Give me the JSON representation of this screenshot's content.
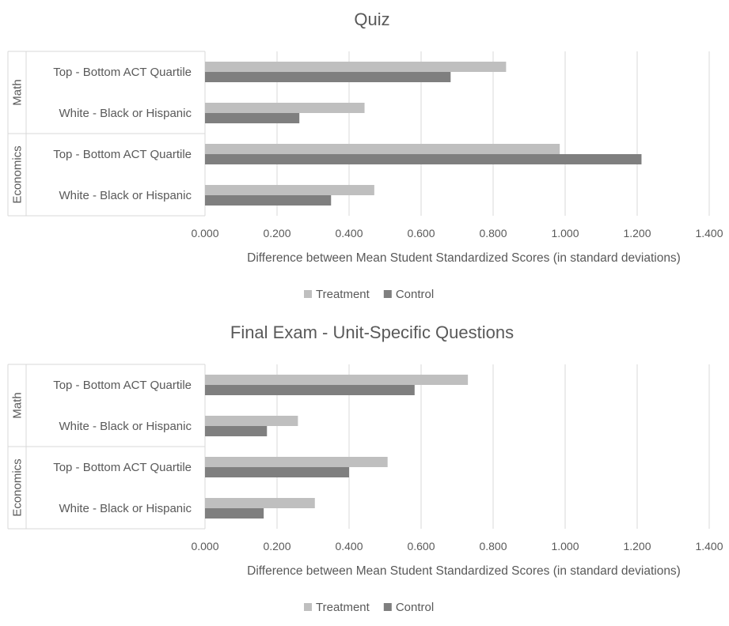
{
  "chart_data": [
    {
      "type": "bar",
      "orientation": "horizontal",
      "title": "Quiz",
      "xlabel": "Difference between Mean Student Standardized Scores (in standard deviations)",
      "xlim": [
        0,
        1.4
      ],
      "xticks": [
        "0.000",
        "0.200",
        "0.400",
        "0.600",
        "0.800",
        "1.000",
        "1.200",
        "1.400"
      ],
      "groups": [
        {
          "name": "Math",
          "categories": [
            "Top - Bottom ACT Quartile",
            "White - Black or Hispanic"
          ]
        },
        {
          "name": "Economics",
          "categories": [
            "Top - Bottom ACT Quartile",
            "White - Black or Hispanic"
          ]
        }
      ],
      "series": [
        {
          "name": "Treatment",
          "color": "#bfbfbf",
          "values": [
            0.836,
            0.443,
            0.985,
            0.47
          ]
        },
        {
          "name": "Control",
          "color": "#7f7f7f",
          "values": [
            0.682,
            0.262,
            1.212,
            0.35
          ]
        }
      ],
      "grid": true,
      "legend": "bottom"
    },
    {
      "type": "bar",
      "orientation": "horizontal",
      "title": "Final Exam - Unit-Specific Questions",
      "xlabel": "Difference between Mean Student Standardized Scores (in standard deviations)",
      "xlim": [
        0,
        1.4
      ],
      "xticks": [
        "0.000",
        "0.200",
        "0.400",
        "0.600",
        "0.800",
        "1.000",
        "1.200",
        "1.400"
      ],
      "groups": [
        {
          "name": "Math",
          "categories": [
            "Top - Bottom ACT Quartile",
            "White - Black or Hispanic"
          ]
        },
        {
          "name": "Economics",
          "categories": [
            "Top - Bottom ACT Quartile",
            "White - Black or Hispanic"
          ]
        }
      ],
      "series": [
        {
          "name": "Treatment",
          "color": "#bfbfbf",
          "values": [
            0.73,
            0.258,
            0.507,
            0.305
          ]
        },
        {
          "name": "Control",
          "color": "#7f7f7f",
          "values": [
            0.582,
            0.172,
            0.4,
            0.163
          ]
        }
      ],
      "grid": true,
      "legend": "bottom"
    }
  ]
}
